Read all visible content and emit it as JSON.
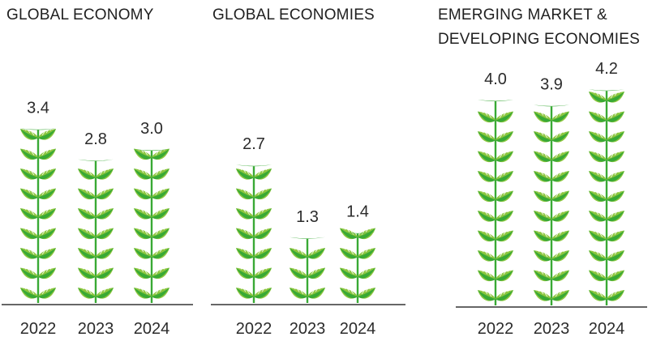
{
  "colors": {
    "leaf_light": "#8cc63f",
    "leaf_dark": "#39a935",
    "stem": "#39a935",
    "baseline": "#333333",
    "text": "#2b2b2b"
  },
  "chart_data": [
    {
      "type": "bar",
      "title": "GLOBAL ECONOMY",
      "categories": [
        "2022",
        "2023",
        "2024"
      ],
      "values": [
        3.4,
        2.8,
        3.0
      ],
      "value_labels": [
        "3.4",
        "2.8",
        "3.0"
      ],
      "mark": "leaf-plant"
    },
    {
      "type": "bar",
      "title": "GLOBAL ECONOMIES",
      "categories": [
        "2022",
        "2023",
        "2024"
      ],
      "values": [
        2.7,
        1.3,
        1.4
      ],
      "value_labels": [
        "2.7",
        "1.3",
        "1.4"
      ],
      "mark": "leaf-plant"
    },
    {
      "type": "bar",
      "title": "EMERGING MARKET &\nDEVELOPING ECONOMIES",
      "categories": [
        "2022",
        "2023",
        "2024"
      ],
      "values": [
        4.0,
        3.9,
        4.2
      ],
      "value_labels": [
        "4.0",
        "3.9",
        "4.2"
      ],
      "mark": "leaf-plant"
    }
  ]
}
